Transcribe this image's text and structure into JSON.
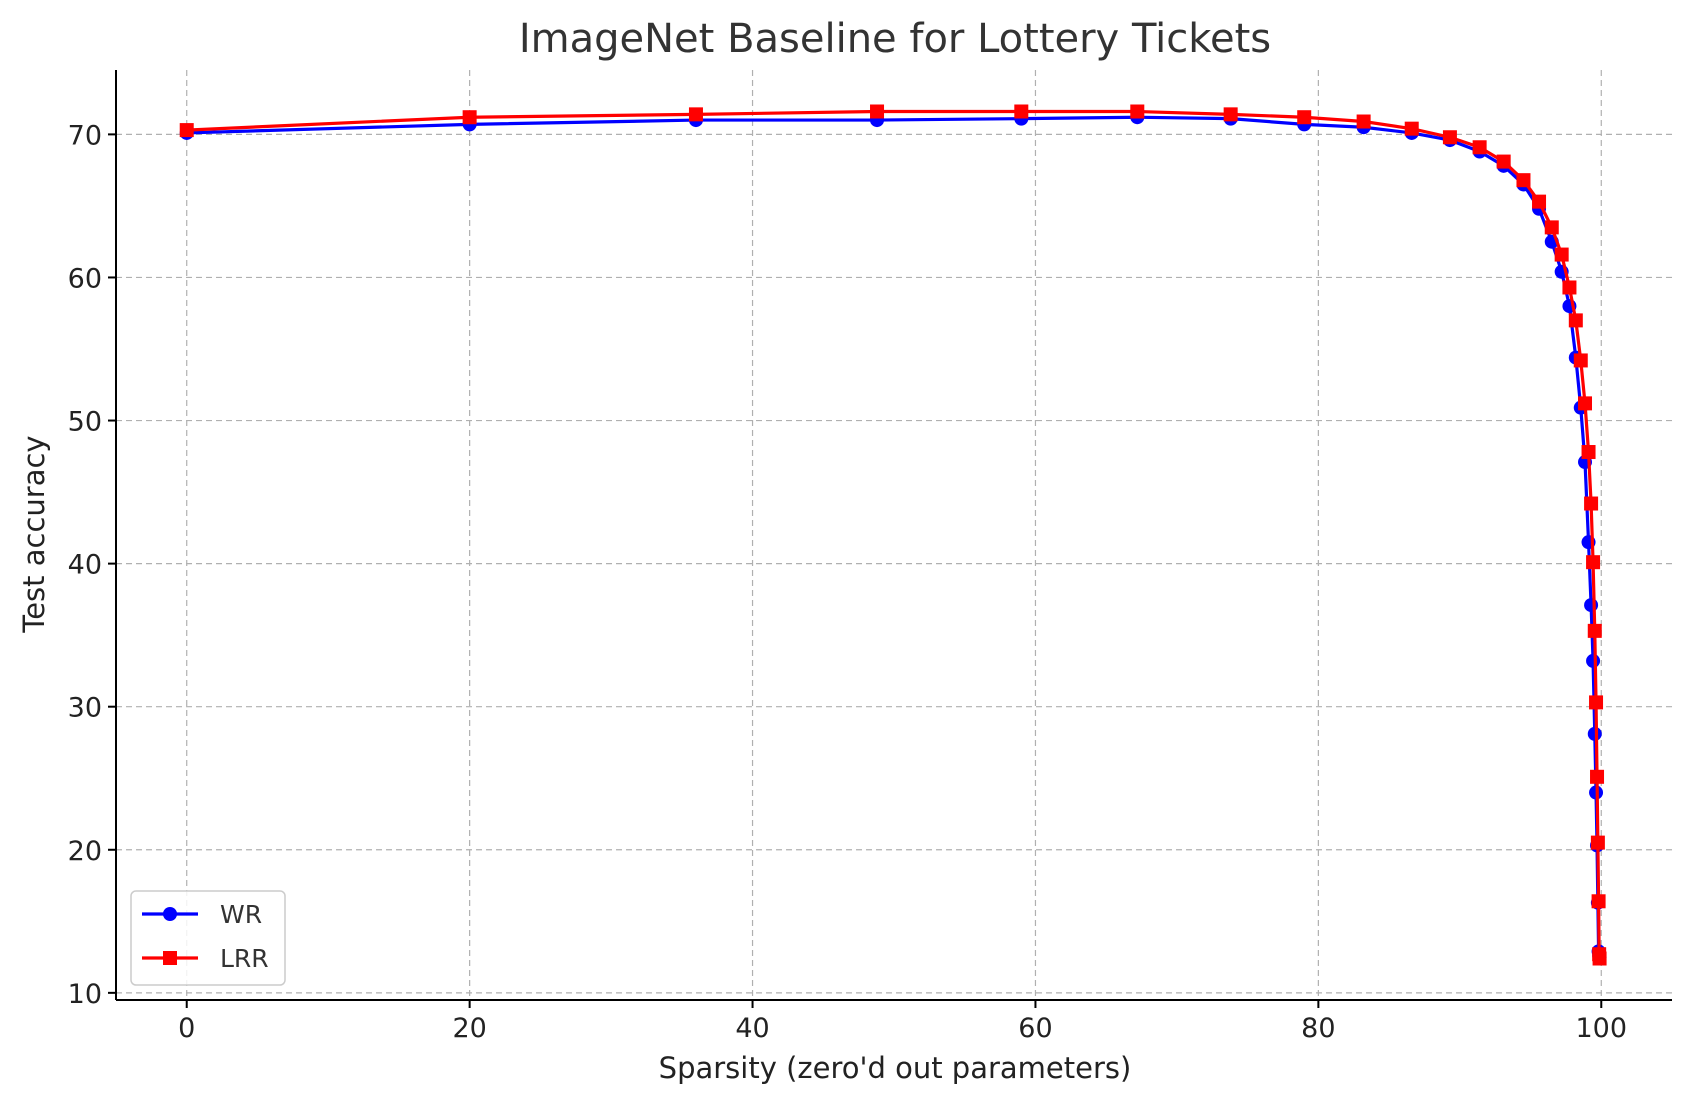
{
  "chart_data": {
    "type": "line",
    "title": "ImageNet Baseline for Lottery Tickets",
    "xlabel": "Sparsity (zero'd out parameters)",
    "ylabel": "Test accuracy",
    "xlim": [
      -5,
      105
    ],
    "ylim": [
      9.5,
      74.5
    ],
    "xticks": [
      0,
      20,
      40,
      60,
      80,
      100
    ],
    "yticks": [
      10,
      20,
      30,
      40,
      50,
      60,
      70
    ],
    "grid": true,
    "legend_position": "lower-left",
    "series": [
      {
        "name": "WR",
        "color": "#0000ff",
        "marker": "circle",
        "x": [
          0,
          20,
          36,
          48.8,
          59,
          67.2,
          73.8,
          79,
          83.2,
          86.6,
          89.3,
          91.4,
          93.1,
          94.5,
          95.6,
          96.5,
          97.2,
          97.75,
          98.2,
          98.55,
          98.85,
          99.1,
          99.28,
          99.42,
          99.54,
          99.63,
          99.7,
          99.76,
          99.81,
          99.85,
          99.88
        ],
        "y": [
          70.1,
          70.7,
          71.0,
          71.0,
          71.1,
          71.2,
          71.1,
          70.7,
          70.5,
          70.1,
          69.6,
          68.8,
          67.8,
          66.5,
          64.8,
          62.5,
          60.4,
          58.0,
          54.4,
          50.9,
          47.1,
          41.5,
          37.1,
          33.2,
          28.1,
          24.0,
          20.3,
          16.3,
          12.9,
          12.6,
          12.5
        ]
      },
      {
        "name": "LRR",
        "color": "#ff0000",
        "marker": "square",
        "x": [
          0,
          20,
          36,
          48.8,
          59,
          67.2,
          73.8,
          79,
          83.2,
          86.6,
          89.3,
          91.4,
          93.1,
          94.5,
          95.6,
          96.5,
          97.2,
          97.75,
          98.2,
          98.55,
          98.85,
          99.1,
          99.28,
          99.42,
          99.54,
          99.63,
          99.7,
          99.76,
          99.81,
          99.85,
          99.88
        ],
        "y": [
          70.3,
          71.2,
          71.4,
          71.6,
          71.6,
          71.6,
          71.4,
          71.2,
          70.9,
          70.4,
          69.8,
          69.1,
          68.1,
          66.8,
          65.3,
          63.5,
          61.6,
          59.3,
          57.0,
          54.2,
          51.2,
          47.8,
          44.2,
          40.1,
          35.3,
          30.3,
          25.1,
          20.5,
          16.4,
          12.7,
          12.4
        ]
      }
    ]
  }
}
